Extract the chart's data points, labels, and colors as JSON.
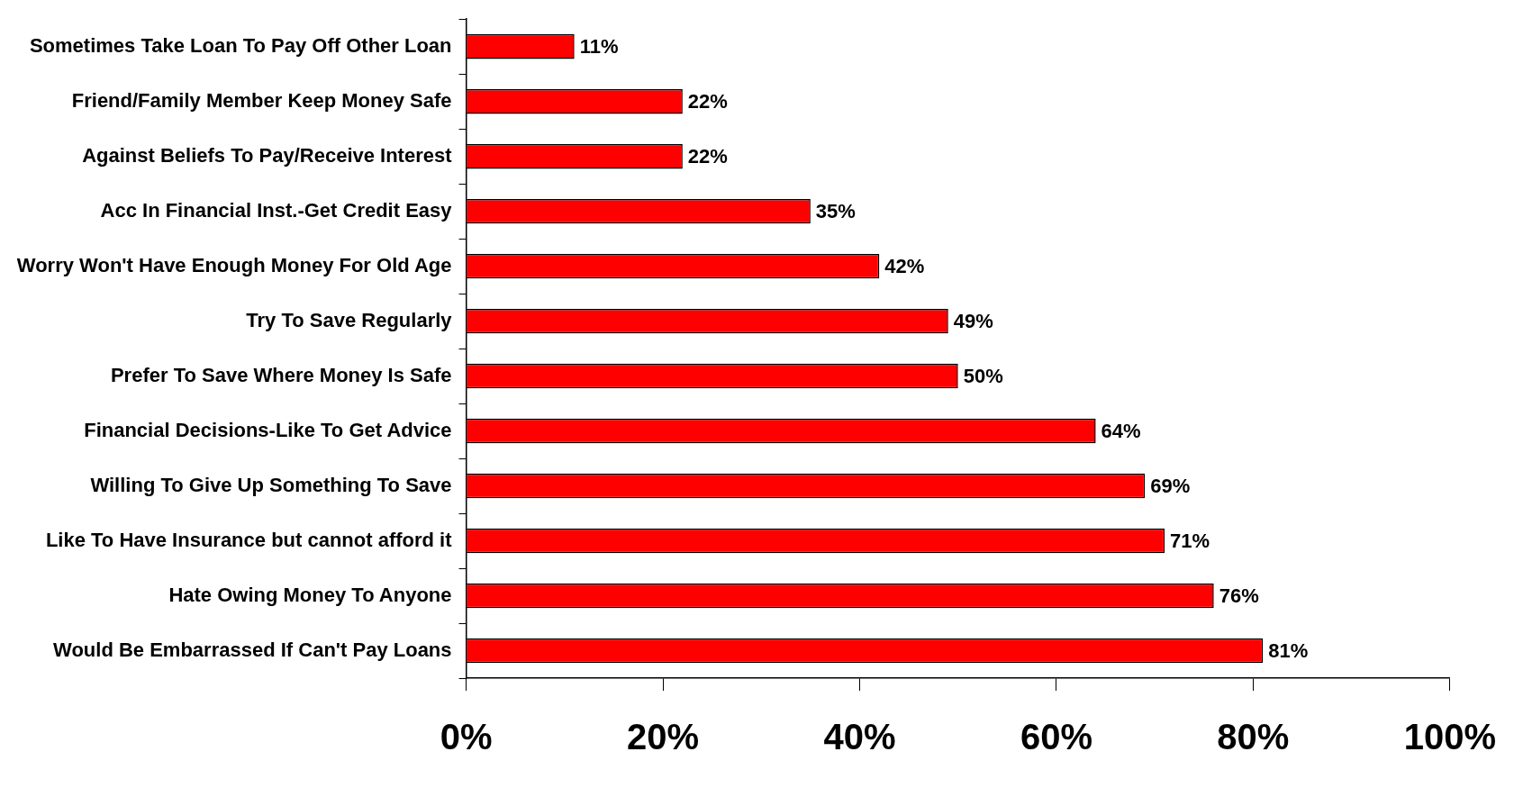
{
  "chart_data": {
    "type": "bar",
    "orientation": "horizontal",
    "categories": [
      "Sometimes Take Loan To Pay Off Other Loan",
      "Friend/Family Member Keep Money Safe",
      "Against Beliefs To Pay/Receive Interest",
      "Acc In Financial Inst.-Get Credit Easy",
      "Worry Won't Have Enough Money For Old Age",
      "Try To Save Regularly",
      "Prefer To Save Where Money Is Safe",
      "Financial Decisions-Like To Get Advice",
      "Willing To Give Up Something To Save",
      "Like To Have Insurance but cannot afford it",
      "Hate Owing Money To Anyone",
      "Would Be Embarrassed If Can't Pay Loans"
    ],
    "values": [
      11,
      22,
      22,
      35,
      42,
      49,
      50,
      64,
      69,
      71,
      76,
      81
    ],
    "value_labels": [
      "11%",
      "22%",
      "22%",
      "35%",
      "42%",
      "49%",
      "50%",
      "64%",
      "69%",
      "71%",
      "76%",
      "81%"
    ],
    "color": "#ff0000",
    "xlim": [
      0,
      100
    ],
    "xticks": [
      {
        "value": 0,
        "label": "0%"
      },
      {
        "value": 20,
        "label": "20%"
      },
      {
        "value": 40,
        "label": "40%"
      },
      {
        "value": 60,
        "label": "60%"
      },
      {
        "value": 80,
        "label": "80%"
      },
      {
        "value": 100,
        "label": "100%"
      }
    ],
    "grid": false,
    "legend": false
  }
}
